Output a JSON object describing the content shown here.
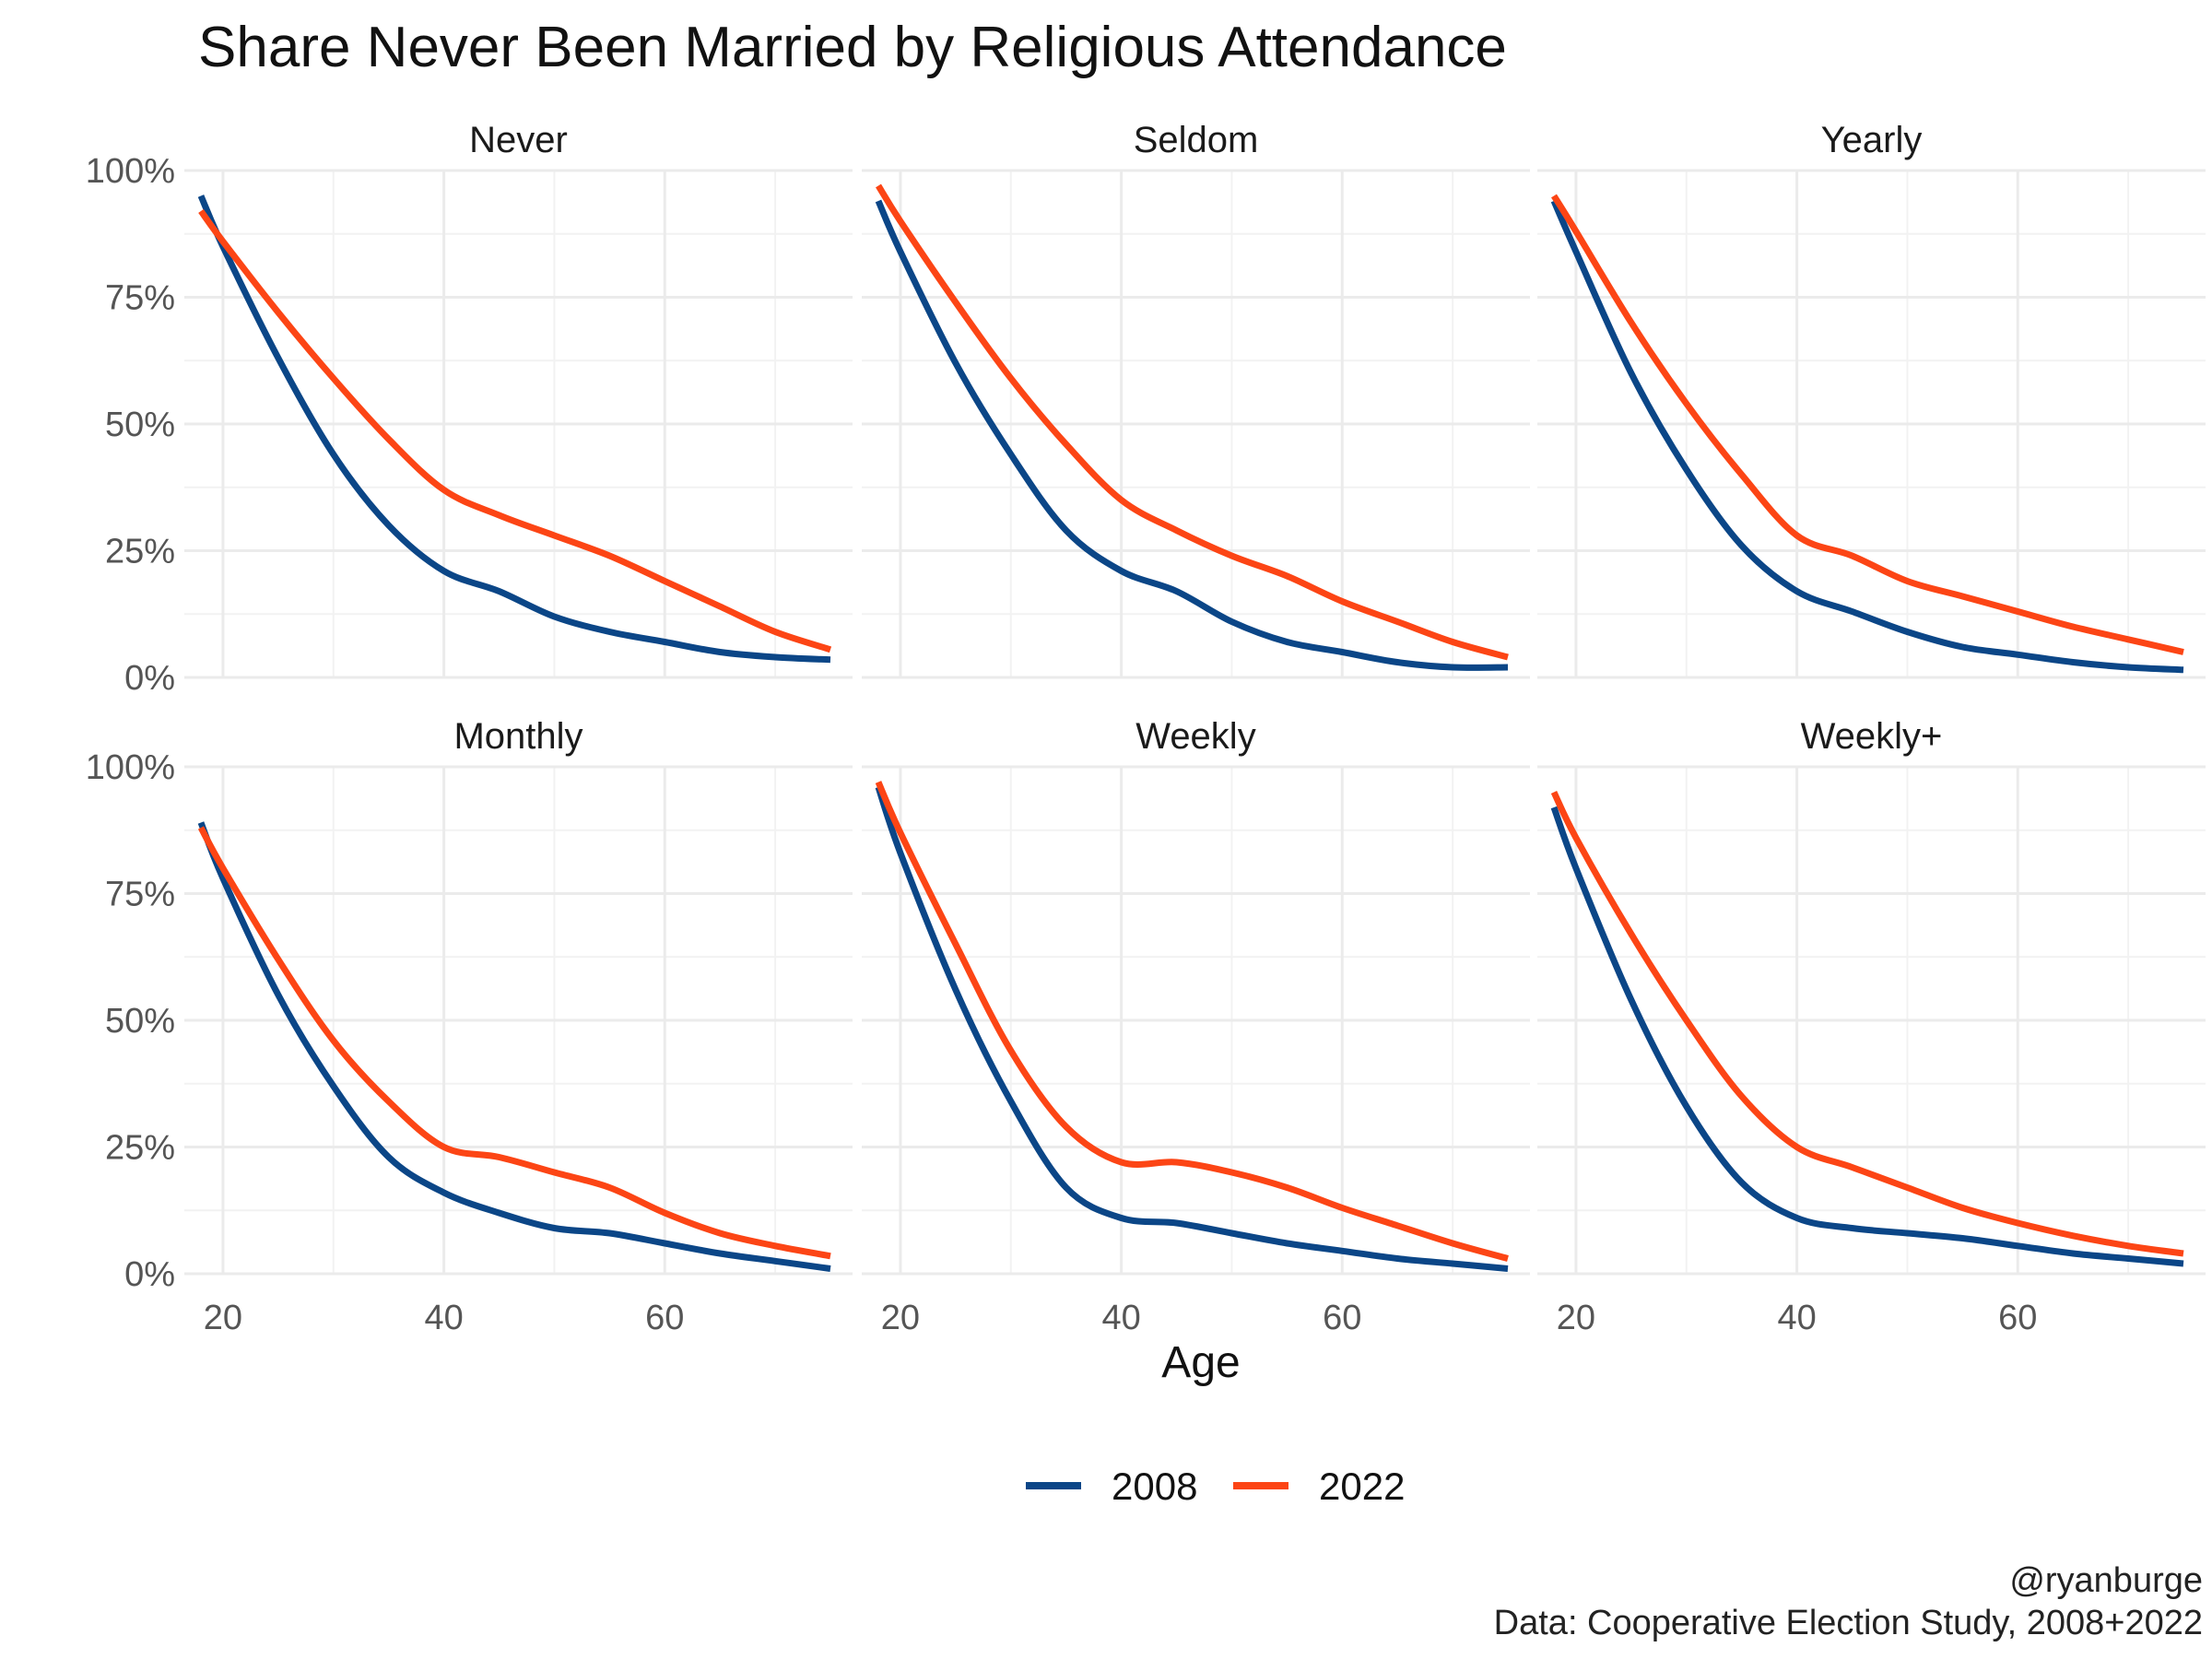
{
  "chart_data": {
    "type": "line",
    "title": "Share Never Been Married by Religious Attendance",
    "xlabel": "Age",
    "ylabel": "",
    "caption": [
      "@ryanburge",
      "Data: Cooperative Election Study, 2008+2022"
    ],
    "xlim": [
      16.5,
      77
    ],
    "ylim": [
      0,
      100
    ],
    "x_ticks": [
      20,
      40,
      60
    ],
    "x_tick_labels": [
      "20",
      "40",
      "60"
    ],
    "y_ticks": [
      0,
      25,
      50,
      75,
      100
    ],
    "y_tick_labels": [
      "0%",
      "25%",
      "50%",
      "75%",
      "100%"
    ],
    "grid": true,
    "legend": {
      "position": "bottom",
      "entries": [
        "2008",
        "2022"
      ]
    },
    "colors": {
      "2008": "#0b4687",
      "2022": "#fc4515"
    },
    "x": [
      18,
      20,
      25,
      30,
      35,
      40,
      45,
      50,
      55,
      60,
      65,
      70,
      75
    ],
    "panels": [
      {
        "label": "Never",
        "series": [
          {
            "name": "2008",
            "values": [
              95,
              85,
              63,
              44,
              30,
              21,
              17,
              12,
              9,
              7,
              5,
              4,
              3.5
            ]
          },
          {
            "name": "2022",
            "values": [
              92,
              86,
              72,
              59,
              47,
              37,
              32,
              28,
              24,
              19,
              14,
              9,
              5.5
            ]
          }
        ]
      },
      {
        "label": "Seldom",
        "series": [
          {
            "name": "2008",
            "values": [
              94,
              84,
              62,
              44,
              29,
              21,
              17,
              11,
              7,
              5,
              3,
              2,
              2
            ]
          },
          {
            "name": "2022",
            "values": [
              97,
              90,
              74,
              59,
              46,
              35,
              29,
              24,
              20,
              15,
              11,
              7,
              4
            ]
          }
        ]
      },
      {
        "label": "Yearly",
        "series": [
          {
            "name": "2008",
            "values": [
              94,
              84,
              60,
              41,
              26,
              17,
              13,
              9,
              6,
              4.5,
              3,
              2,
              1.5
            ]
          },
          {
            "name": "2022",
            "values": [
              95,
              88,
              70,
              54,
              40,
              28,
              24,
              19,
              16,
              13,
              10,
              7.5,
              5
            ]
          }
        ]
      },
      {
        "label": "Monthly",
        "series": [
          {
            "name": "2008",
            "values": [
              89,
              78,
              55,
              37,
              23,
              16,
              12,
              9,
              8,
              6,
              4,
              2.5,
              1
            ]
          },
          {
            "name": "2022",
            "values": [
              88,
              80,
              62,
              46,
              34,
              25,
              23,
              20,
              17,
              12,
              8,
              5.5,
              3.5
            ]
          }
        ]
      },
      {
        "label": "Weekly",
        "series": [
          {
            "name": "2008",
            "values": [
              96,
              83,
              56,
              34,
              17,
              11,
              10,
              8,
              6,
              4.5,
              3,
              2,
              1
            ]
          },
          {
            "name": "2022",
            "values": [
              97,
              87,
              65,
              44,
              29,
              22,
              22,
              20,
              17,
              13,
              9.5,
              6,
              3
            ]
          }
        ]
      },
      {
        "label": "Weekly+",
        "series": [
          {
            "name": "2008",
            "values": [
              92,
              80,
              54,
              33,
              18,
              11,
              9,
              8,
              7,
              5.5,
              4,
              3,
              2
            ]
          },
          {
            "name": "2022",
            "values": [
              95,
              86,
              67,
              50,
              35,
              25,
              21,
              17,
              13,
              10,
              7.5,
              5.5,
              4
            ]
          }
        ]
      }
    ]
  }
}
